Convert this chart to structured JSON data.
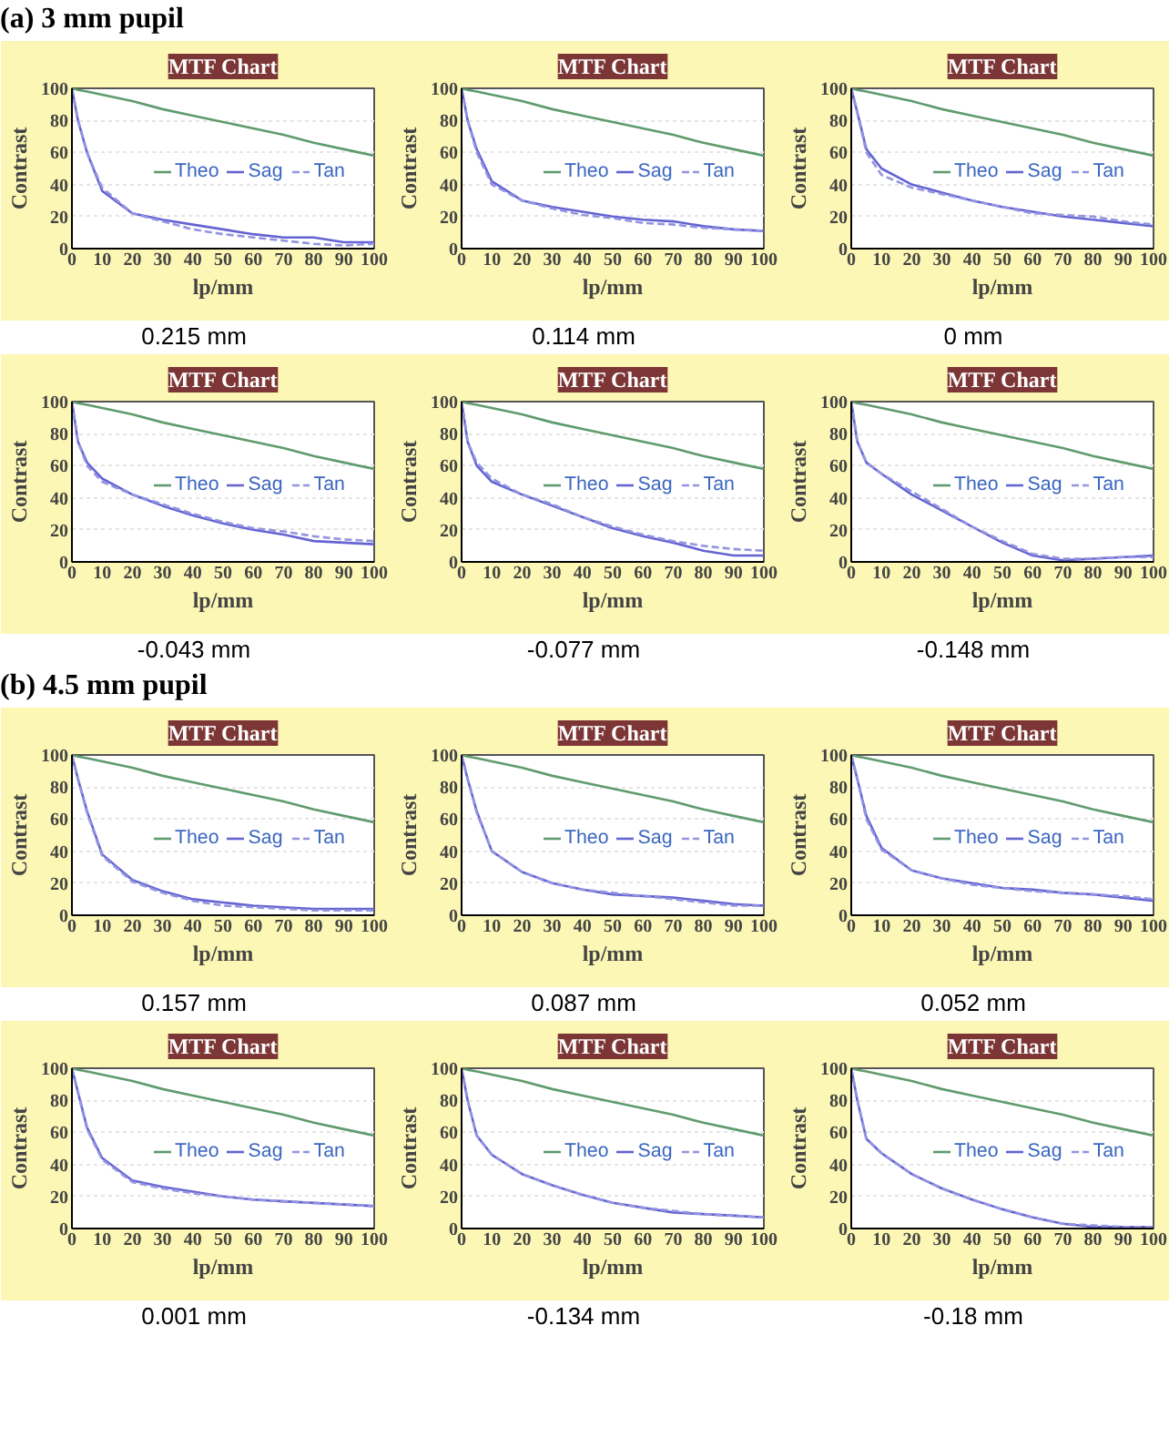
{
  "chart_data": [
    {
      "type": "line",
      "title": "MTF Chart",
      "xlabel": "lp/mm",
      "ylabel": "Contrast",
      "annotations": [
        "(a)  3 mm pupil",
        "0.215 mm"
      ],
      "x": [
        0,
        2,
        5,
        10,
        20,
        30,
        40,
        50,
        60,
        70,
        80,
        90,
        100
      ],
      "xlim": [
        0,
        100
      ],
      "ylim": [
        0,
        100
      ],
      "xticks": [
        0,
        10,
        20,
        30,
        40,
        50,
        60,
        70,
        80,
        90,
        100
      ],
      "yticks": [
        0,
        20,
        40,
        60,
        80,
        100
      ],
      "grid": "y",
      "legend": "right",
      "series": [
        {
          "name": "Theo",
          "color": "#5f9b6e",
          "values": [
            100,
            99,
            98,
            96,
            92,
            87,
            83,
            79,
            75,
            71,
            66,
            62,
            58
          ],
          "line_style": "solid"
        },
        {
          "name": "Sag",
          "color": "#6464d2",
          "values": [
            100,
            80,
            60,
            36,
            22,
            18,
            15,
            12,
            9,
            7,
            7,
            4,
            4
          ],
          "line_style": "solid"
        },
        {
          "name": "Tan",
          "color": "#9494e0",
          "values": [
            100,
            80,
            60,
            38,
            22,
            17,
            12,
            9,
            7,
            5,
            3,
            2,
            3
          ],
          "line_style": "dashed"
        }
      ]
    },
    {
      "type": "line",
      "title": "MTF Chart",
      "xlabel": "lp/mm",
      "ylabel": "Contrast",
      "annotations": [
        "0.114 mm"
      ],
      "x": [
        0,
        2,
        5,
        10,
        20,
        30,
        40,
        50,
        60,
        70,
        80,
        90,
        100
      ],
      "xlim": [
        0,
        100
      ],
      "ylim": [
        0,
        100
      ],
      "xticks": [
        0,
        10,
        20,
        30,
        40,
        50,
        60,
        70,
        80,
        90,
        100
      ],
      "yticks": [
        0,
        20,
        40,
        60,
        80,
        100
      ],
      "grid": "y",
      "legend": "right",
      "series": [
        {
          "name": "Theo",
          "color": "#5f9b6e",
          "values": [
            100,
            99,
            98,
            96,
            92,
            87,
            83,
            79,
            75,
            71,
            66,
            62,
            58
          ],
          "line_style": "solid"
        },
        {
          "name": "Sag",
          "color": "#6464d2",
          "values": [
            100,
            80,
            62,
            42,
            30,
            26,
            23,
            20,
            18,
            17,
            14,
            12,
            11
          ],
          "line_style": "solid"
        },
        {
          "name": "Tan",
          "color": "#9494e0",
          "values": [
            100,
            80,
            60,
            40,
            30,
            25,
            21,
            19,
            16,
            15,
            13,
            12,
            11
          ],
          "line_style": "dashed"
        }
      ]
    },
    {
      "type": "line",
      "title": "MTF Chart",
      "xlabel": "lp/mm",
      "ylabel": "Contrast",
      "annotations": [
        "0 mm"
      ],
      "x": [
        0,
        2,
        5,
        10,
        20,
        30,
        40,
        50,
        60,
        70,
        80,
        90,
        100
      ],
      "xlim": [
        0,
        100
      ],
      "ylim": [
        0,
        100
      ],
      "xticks": [
        0,
        10,
        20,
        30,
        40,
        50,
        60,
        70,
        80,
        90,
        100
      ],
      "yticks": [
        0,
        20,
        40,
        60,
        80,
        100
      ],
      "grid": "y",
      "legend": "right",
      "series": [
        {
          "name": "Theo",
          "color": "#5f9b6e",
          "values": [
            100,
            99,
            98,
            96,
            92,
            87,
            83,
            79,
            75,
            71,
            66,
            62,
            58
          ],
          "line_style": "solid"
        },
        {
          "name": "Sag",
          "color": "#6464d2",
          "values": [
            100,
            85,
            62,
            50,
            40,
            35,
            30,
            26,
            23,
            20,
            18,
            16,
            14
          ],
          "line_style": "solid"
        },
        {
          "name": "Tan",
          "color": "#9494e0",
          "values": [
            100,
            85,
            60,
            46,
            38,
            34,
            30,
            26,
            22,
            21,
            20,
            17,
            15
          ],
          "line_style": "dashed"
        }
      ]
    },
    {
      "type": "line",
      "title": "MTF Chart",
      "xlabel": "lp/mm",
      "ylabel": "Contrast",
      "annotations": [
        "-0.043 mm"
      ],
      "x": [
        0,
        2,
        5,
        10,
        20,
        30,
        40,
        50,
        60,
        70,
        80,
        90,
        100
      ],
      "xlim": [
        0,
        100
      ],
      "ylim": [
        0,
        100
      ],
      "xticks": [
        0,
        10,
        20,
        30,
        40,
        50,
        60,
        70,
        80,
        90,
        100
      ],
      "yticks": [
        0,
        20,
        40,
        60,
        80,
        100
      ],
      "grid": "y",
      "legend": "right",
      "series": [
        {
          "name": "Theo",
          "color": "#5f9b6e",
          "values": [
            100,
            99,
            98,
            96,
            92,
            87,
            83,
            79,
            75,
            71,
            66,
            62,
            58
          ],
          "line_style": "solid"
        },
        {
          "name": "Sag",
          "color": "#6464d2",
          "values": [
            100,
            75,
            62,
            52,
            42,
            35,
            29,
            24,
            20,
            17,
            13,
            12,
            11
          ],
          "line_style": "solid"
        },
        {
          "name": "Tan",
          "color": "#9494e0",
          "values": [
            100,
            75,
            60,
            50,
            42,
            36,
            30,
            25,
            21,
            19,
            16,
            14,
            13
          ],
          "line_style": "dashed"
        }
      ]
    },
    {
      "type": "line",
      "title": "MTF Chart",
      "xlabel": "lp/mm",
      "ylabel": "Contrast",
      "annotations": [
        "-0.077 mm"
      ],
      "x": [
        0,
        2,
        5,
        10,
        20,
        30,
        40,
        50,
        60,
        70,
        80,
        90,
        100
      ],
      "xlim": [
        0,
        100
      ],
      "ylim": [
        0,
        100
      ],
      "xticks": [
        0,
        10,
        20,
        30,
        40,
        50,
        60,
        70,
        80,
        90,
        100
      ],
      "yticks": [
        0,
        20,
        40,
        60,
        80,
        100
      ],
      "grid": "y",
      "legend": "right",
      "series": [
        {
          "name": "Theo",
          "color": "#5f9b6e",
          "values": [
            100,
            99,
            98,
            96,
            92,
            87,
            83,
            79,
            75,
            71,
            66,
            62,
            58
          ],
          "line_style": "solid"
        },
        {
          "name": "Sag",
          "color": "#6464d2",
          "values": [
            100,
            75,
            60,
            50,
            42,
            35,
            28,
            21,
            16,
            12,
            7,
            4,
            4
          ],
          "line_style": "solid"
        },
        {
          "name": "Tan",
          "color": "#9494e0",
          "values": [
            100,
            75,
            62,
            52,
            42,
            36,
            28,
            22,
            17,
            13,
            10,
            8,
            7
          ],
          "line_style": "dashed"
        }
      ]
    },
    {
      "type": "line",
      "title": "MTF Chart",
      "xlabel": "lp/mm",
      "ylabel": "Contrast",
      "annotations": [
        "-0.148 mm"
      ],
      "x": [
        0,
        2,
        5,
        10,
        20,
        30,
        40,
        50,
        60,
        70,
        80,
        90,
        100
      ],
      "xlim": [
        0,
        100
      ],
      "ylim": [
        0,
        100
      ],
      "xticks": [
        0,
        10,
        20,
        30,
        40,
        50,
        60,
        70,
        80,
        90,
        100
      ],
      "yticks": [
        0,
        20,
        40,
        60,
        80,
        100
      ],
      "grid": "y",
      "legend": "right",
      "series": [
        {
          "name": "Theo",
          "color": "#5f9b6e",
          "values": [
            100,
            99,
            98,
            96,
            92,
            87,
            83,
            79,
            75,
            71,
            66,
            62,
            58
          ],
          "line_style": "solid"
        },
        {
          "name": "Sag",
          "color": "#6464d2",
          "values": [
            100,
            75,
            62,
            55,
            42,
            32,
            22,
            12,
            4,
            1,
            2,
            3,
            4
          ],
          "line_style": "solid"
        },
        {
          "name": "Tan",
          "color": "#9494e0",
          "values": [
            100,
            75,
            62,
            55,
            44,
            33,
            22,
            13,
            5,
            2,
            2,
            3,
            3
          ],
          "line_style": "dashed"
        }
      ]
    },
    {
      "type": "line",
      "title": "MTF Chart",
      "xlabel": "lp/mm",
      "ylabel": "Contrast",
      "annotations": [
        "(b)  4.5 mm pupil",
        "0.157 mm"
      ],
      "x": [
        0,
        2,
        5,
        10,
        20,
        30,
        40,
        50,
        60,
        70,
        80,
        90,
        100
      ],
      "xlim": [
        0,
        100
      ],
      "ylim": [
        0,
        100
      ],
      "xticks": [
        0,
        10,
        20,
        30,
        40,
        50,
        60,
        70,
        80,
        90,
        100
      ],
      "yticks": [
        0,
        20,
        40,
        60,
        80,
        100
      ],
      "grid": "y",
      "legend": "right",
      "series": [
        {
          "name": "Theo",
          "color": "#5f9b6e",
          "values": [
            100,
            99,
            98,
            96,
            92,
            87,
            83,
            79,
            75,
            71,
            66,
            62,
            58
          ],
          "line_style": "solid"
        },
        {
          "name": "Sag",
          "color": "#6464d2",
          "values": [
            100,
            85,
            65,
            38,
            22,
            15,
            10,
            8,
            6,
            5,
            4,
            4,
            4
          ],
          "line_style": "solid"
        },
        {
          "name": "Tan",
          "color": "#9494e0",
          "values": [
            100,
            85,
            64,
            37,
            21,
            14,
            9,
            6,
            5,
            4,
            3,
            3,
            3
          ],
          "line_style": "dashed"
        }
      ]
    },
    {
      "type": "line",
      "title": "MTF Chart",
      "xlabel": "lp/mm",
      "ylabel": "Contrast",
      "annotations": [
        "0.087 mm"
      ],
      "x": [
        0,
        2,
        5,
        10,
        20,
        30,
        40,
        50,
        60,
        70,
        80,
        90,
        100
      ],
      "xlim": [
        0,
        100
      ],
      "ylim": [
        0,
        100
      ],
      "xticks": [
        0,
        10,
        20,
        30,
        40,
        50,
        60,
        70,
        80,
        90,
        100
      ],
      "yticks": [
        0,
        20,
        40,
        60,
        80,
        100
      ],
      "grid": "y",
      "legend": "right",
      "series": [
        {
          "name": "Theo",
          "color": "#5f9b6e",
          "values": [
            100,
            99,
            98,
            96,
            92,
            87,
            83,
            79,
            75,
            71,
            66,
            62,
            58
          ],
          "line_style": "solid"
        },
        {
          "name": "Sag",
          "color": "#6464d2",
          "values": [
            100,
            85,
            65,
            40,
            27,
            20,
            16,
            13,
            12,
            11,
            9,
            7,
            6
          ],
          "line_style": "solid"
        },
        {
          "name": "Tan",
          "color": "#9494e0",
          "values": [
            100,
            85,
            64,
            40,
            27,
            20,
            16,
            14,
            12,
            10,
            8,
            6,
            6
          ],
          "line_style": "dashed"
        }
      ]
    },
    {
      "type": "line",
      "title": "MTF Chart",
      "xlabel": "lp/mm",
      "ylabel": "Contrast",
      "annotations": [
        "0.052 mm"
      ],
      "x": [
        0,
        2,
        5,
        10,
        20,
        30,
        40,
        50,
        60,
        70,
        80,
        90,
        100
      ],
      "xlim": [
        0,
        100
      ],
      "ylim": [
        0,
        100
      ],
      "xticks": [
        0,
        10,
        20,
        30,
        40,
        50,
        60,
        70,
        80,
        90,
        100
      ],
      "yticks": [
        0,
        20,
        40,
        60,
        80,
        100
      ],
      "grid": "y",
      "legend": "right",
      "series": [
        {
          "name": "Theo",
          "color": "#5f9b6e",
          "values": [
            100,
            99,
            98,
            96,
            92,
            87,
            83,
            79,
            75,
            71,
            66,
            62,
            58
          ],
          "line_style": "solid"
        },
        {
          "name": "Sag",
          "color": "#6464d2",
          "values": [
            100,
            85,
            62,
            42,
            28,
            23,
            20,
            17,
            16,
            14,
            13,
            11,
            9
          ],
          "line_style": "solid"
        },
        {
          "name": "Tan",
          "color": "#9494e0",
          "values": [
            100,
            85,
            60,
            41,
            28,
            23,
            19,
            17,
            15,
            14,
            13,
            12,
            10
          ],
          "line_style": "dashed"
        }
      ]
    },
    {
      "type": "line",
      "title": "MTF Chart",
      "xlabel": "lp/mm",
      "ylabel": "Contrast",
      "annotations": [
        "0.001 mm"
      ],
      "x": [
        0,
        2,
        5,
        10,
        20,
        30,
        40,
        50,
        60,
        70,
        80,
        90,
        100
      ],
      "xlim": [
        0,
        100
      ],
      "ylim": [
        0,
        100
      ],
      "xticks": [
        0,
        10,
        20,
        30,
        40,
        50,
        60,
        70,
        80,
        90,
        100
      ],
      "yticks": [
        0,
        20,
        40,
        60,
        80,
        100
      ],
      "grid": "y",
      "legend": "right",
      "series": [
        {
          "name": "Theo",
          "color": "#5f9b6e",
          "values": [
            100,
            99,
            98,
            96,
            92,
            87,
            83,
            79,
            75,
            71,
            66,
            62,
            58
          ],
          "line_style": "solid"
        },
        {
          "name": "Sag",
          "color": "#6464d2",
          "values": [
            100,
            85,
            63,
            44,
            30,
            26,
            23,
            20,
            18,
            17,
            16,
            15,
            14
          ],
          "line_style": "solid"
        },
        {
          "name": "Tan",
          "color": "#9494e0",
          "values": [
            100,
            85,
            62,
            43,
            29,
            25,
            22,
            20,
            18,
            17,
            16,
            15,
            14
          ],
          "line_style": "dashed"
        }
      ]
    },
    {
      "type": "line",
      "title": "MTF Chart",
      "xlabel": "lp/mm",
      "ylabel": "Contrast",
      "annotations": [
        "-0.134 mm"
      ],
      "x": [
        0,
        2,
        5,
        10,
        20,
        30,
        40,
        50,
        60,
        70,
        80,
        90,
        100
      ],
      "xlim": [
        0,
        100
      ],
      "ylim": [
        0,
        100
      ],
      "xticks": [
        0,
        10,
        20,
        30,
        40,
        50,
        60,
        70,
        80,
        90,
        100
      ],
      "yticks": [
        0,
        20,
        40,
        60,
        80,
        100
      ],
      "grid": "y",
      "legend": "right",
      "series": [
        {
          "name": "Theo",
          "color": "#5f9b6e",
          "values": [
            100,
            99,
            98,
            96,
            92,
            87,
            83,
            79,
            75,
            71,
            66,
            62,
            58
          ],
          "line_style": "solid"
        },
        {
          "name": "Sag",
          "color": "#6464d2",
          "values": [
            100,
            80,
            58,
            46,
            34,
            27,
            21,
            16,
            13,
            10,
            9,
            8,
            7
          ],
          "line_style": "solid"
        },
        {
          "name": "Tan",
          "color": "#9494e0",
          "values": [
            100,
            80,
            58,
            46,
            34,
            27,
            21,
            16,
            13,
            11,
            9,
            8,
            7
          ],
          "line_style": "dashed"
        }
      ]
    },
    {
      "type": "line",
      "title": "MTF Chart",
      "xlabel": "lp/mm",
      "ylabel": "Contrast",
      "annotations": [
        "-0.18 mm"
      ],
      "x": [
        0,
        2,
        5,
        10,
        20,
        30,
        40,
        50,
        60,
        70,
        80,
        90,
        100
      ],
      "xlim": [
        0,
        100
      ],
      "ylim": [
        0,
        100
      ],
      "xticks": [
        0,
        10,
        20,
        30,
        40,
        50,
        60,
        70,
        80,
        90,
        100
      ],
      "yticks": [
        0,
        20,
        40,
        60,
        80,
        100
      ],
      "grid": "y",
      "legend": "right",
      "series": [
        {
          "name": "Theo",
          "color": "#5f9b6e",
          "values": [
            100,
            99,
            98,
            96,
            92,
            87,
            83,
            79,
            75,
            71,
            66,
            62,
            58
          ],
          "line_style": "solid"
        },
        {
          "name": "Sag",
          "color": "#6464d2",
          "values": [
            100,
            80,
            56,
            47,
            34,
            25,
            18,
            12,
            7,
            3,
            1,
            1,
            1
          ],
          "line_style": "solid"
        },
        {
          "name": "Tan",
          "color": "#9494e0",
          "values": [
            100,
            80,
            56,
            47,
            34,
            25,
            18,
            12,
            7,
            3,
            2,
            1,
            1
          ],
          "line_style": "dashed"
        }
      ]
    }
  ]
}
